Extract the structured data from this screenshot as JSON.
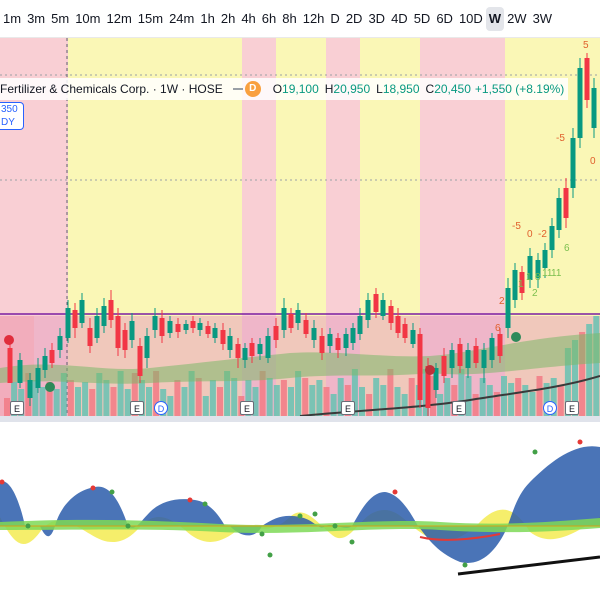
{
  "timeframes": [
    "1m",
    "3m",
    "5m",
    "10m",
    "12m",
    "15m",
    "24m",
    "1h",
    "2h",
    "4h",
    "6h",
    "8h",
    "12h",
    "D",
    "2D",
    "3D",
    "4D",
    "5D",
    "6D",
    "10D",
    "W",
    "2W",
    "3W"
  ],
  "active_timeframe": "W",
  "legend": {
    "title": "Fertilizer & Chemicals Corp. · 1W · HOSE",
    "badge": "D",
    "open_label": "O",
    "open_value": "19,100",
    "high_label": "H",
    "high_value": "20,950",
    "low_label": "L",
    "low_value": "18,950",
    "close_label": "C",
    "close_value": "20,450",
    "change": "+1,550 (+8.19%)"
  },
  "price_box": {
    "line1": "350",
    "line2": "DY"
  },
  "events": [
    "E",
    "E",
    "D",
    "E",
    "E",
    "E",
    "D",
    "E"
  ],
  "colors": {
    "up": "#089981",
    "down": "#f23645",
    "yellow_band": "#faf7b6",
    "pink_band": "#f9cfd4",
    "purple_line": "#7b1fa2",
    "osc_blue": "#2a5caa",
    "osc_yellow": "#f2e83a",
    "osc_green": "#7ed957"
  },
  "annotations": {
    "red_numbers": [
      "-5",
      "0",
      "-2",
      "-5",
      "5",
      "0",
      "2",
      "6"
    ],
    "green_numbers": [
      "1",
      "1",
      "8",
      "2",
      "11",
      "11",
      "6"
    ]
  }
}
